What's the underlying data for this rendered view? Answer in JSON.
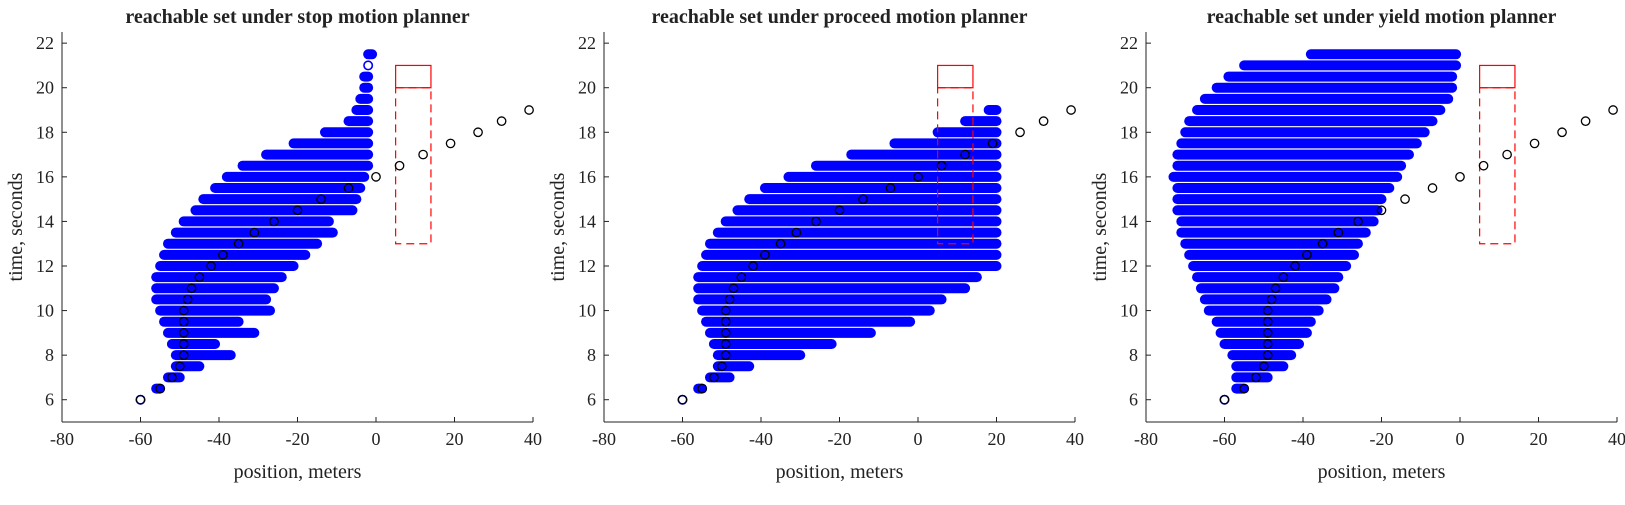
{
  "figure": {
    "colors": {
      "reachable": "#0000ff",
      "trajectory": "#000000",
      "conflict_zone": "#ff0000",
      "axis": "#222222"
    }
  },
  "chart_data": [
    {
      "type": "scatter",
      "title": "reachable set under stop motion planner",
      "xlabel": "position, meters",
      "ylabel": "time, seconds",
      "xlim": [
        -80,
        40
      ],
      "ylim": [
        5,
        22.5
      ],
      "xticks": [
        "-80",
        "-60",
        "-40",
        "-20",
        "0",
        "20",
        "40"
      ],
      "yticks": [
        "6",
        "8",
        "10",
        "12",
        "14",
        "16",
        "18",
        "20",
        "22"
      ],
      "grid": false,
      "reachable_set": [
        {
          "t": 6.0,
          "x": [
            -60,
            -60
          ]
        },
        {
          "t": 6.5,
          "x": [
            -56,
            -55
          ]
        },
        {
          "t": 7.0,
          "x": [
            -53,
            -50
          ]
        },
        {
          "t": 7.5,
          "x": [
            -51,
            -45
          ]
        },
        {
          "t": 8.0,
          "x": [
            -51,
            -37
          ]
        },
        {
          "t": 8.5,
          "x": [
            -52,
            -41
          ]
        },
        {
          "t": 9.0,
          "x": [
            -53,
            -31
          ]
        },
        {
          "t": 9.5,
          "x": [
            -54,
            -35
          ]
        },
        {
          "t": 10.0,
          "x": [
            -55,
            -27
          ]
        },
        {
          "t": 10.5,
          "x": [
            -56,
            -28
          ]
        },
        {
          "t": 11.0,
          "x": [
            -56,
            -26
          ]
        },
        {
          "t": 11.5,
          "x": [
            -56,
            -24
          ]
        },
        {
          "t": 12.0,
          "x": [
            -55,
            -21
          ]
        },
        {
          "t": 12.5,
          "x": [
            -54,
            -18
          ]
        },
        {
          "t": 13.0,
          "x": [
            -53,
            -15
          ]
        },
        {
          "t": 13.5,
          "x": [
            -51,
            -11
          ]
        },
        {
          "t": 14.0,
          "x": [
            -49,
            -12
          ]
        },
        {
          "t": 14.5,
          "x": [
            -46,
            -6
          ]
        },
        {
          "t": 15.0,
          "x": [
            -44,
            -5
          ]
        },
        {
          "t": 15.5,
          "x": [
            -41,
            -4
          ]
        },
        {
          "t": 16.0,
          "x": [
            -38,
            -3
          ]
        },
        {
          "t": 16.5,
          "x": [
            -34,
            -2
          ]
        },
        {
          "t": 17.0,
          "x": [
            -28,
            -2
          ]
        },
        {
          "t": 17.5,
          "x": [
            -21,
            -2
          ]
        },
        {
          "t": 18.0,
          "x": [
            -13,
            -2
          ]
        },
        {
          "t": 18.5,
          "x": [
            -7,
            -2
          ]
        },
        {
          "t": 19.0,
          "x": [
            -5,
            -2
          ]
        },
        {
          "t": 19.5,
          "x": [
            -4,
            -2
          ]
        },
        {
          "t": 20.0,
          "x": [
            -3,
            -2
          ]
        },
        {
          "t": 20.5,
          "x": [
            -3,
            -2
          ]
        },
        {
          "t": 21.0,
          "x": [
            -2,
            -2
          ]
        },
        {
          "t": 21.5,
          "x": [
            -2,
            -1
          ]
        }
      ],
      "trajectory": [
        [
          -60,
          6.0
        ],
        [
          -55,
          6.5
        ],
        [
          -52,
          7.0
        ],
        [
          -50,
          7.5
        ],
        [
          -49,
          8.0
        ],
        [
          -49,
          8.5
        ],
        [
          -49,
          9.0
        ],
        [
          -49,
          9.5
        ],
        [
          -49,
          10.0
        ],
        [
          -48,
          10.5
        ],
        [
          -47,
          11.0
        ],
        [
          -45,
          11.5
        ],
        [
          -42,
          12.0
        ],
        [
          -39,
          12.5
        ],
        [
          -35,
          13.0
        ],
        [
          -31,
          13.5
        ],
        [
          -26,
          14.0
        ],
        [
          -20,
          14.5
        ],
        [
          -14,
          15.0
        ],
        [
          -7,
          15.5
        ],
        [
          0,
          16.0
        ],
        [
          6,
          16.5
        ],
        [
          12,
          17.0
        ],
        [
          19,
          17.5
        ],
        [
          26,
          18.0
        ],
        [
          32,
          18.5
        ],
        [
          39,
          19.0
        ]
      ],
      "conflict_zone": {
        "x": [
          5,
          14
        ],
        "dashed_t": [
          13,
          20
        ],
        "solid_t": [
          20,
          21
        ]
      }
    },
    {
      "type": "scatter",
      "title": "reachable set under proceed motion planner",
      "xlabel": "position, meters",
      "ylabel": "time, seconds",
      "xlim": [
        -80,
        40
      ],
      "ylim": [
        5,
        22.5
      ],
      "xticks": [
        "-80",
        "-60",
        "-40",
        "-20",
        "0",
        "20",
        "40"
      ],
      "yticks": [
        "6",
        "8",
        "10",
        "12",
        "14",
        "16",
        "18",
        "20",
        "22"
      ],
      "grid": false,
      "reachable_set": [
        {
          "t": 6.0,
          "x": [
            -60,
            -60
          ]
        },
        {
          "t": 6.5,
          "x": [
            -56,
            -55
          ]
        },
        {
          "t": 7.0,
          "x": [
            -53,
            -48
          ]
        },
        {
          "t": 7.5,
          "x": [
            -51,
            -43
          ]
        },
        {
          "t": 8.0,
          "x": [
            -51,
            -30
          ]
        },
        {
          "t": 8.5,
          "x": [
            -52,
            -22
          ]
        },
        {
          "t": 9.0,
          "x": [
            -53,
            -12
          ]
        },
        {
          "t": 9.5,
          "x": [
            -54,
            -2
          ]
        },
        {
          "t": 10.0,
          "x": [
            -55,
            3
          ]
        },
        {
          "t": 10.5,
          "x": [
            -56,
            6
          ]
        },
        {
          "t": 11.0,
          "x": [
            -56,
            12
          ]
        },
        {
          "t": 11.5,
          "x": [
            -56,
            15
          ]
        },
        {
          "t": 12.0,
          "x": [
            -55,
            20
          ]
        },
        {
          "t": 12.5,
          "x": [
            -54,
            20
          ]
        },
        {
          "t": 13.0,
          "x": [
            -53,
            20
          ]
        },
        {
          "t": 13.5,
          "x": [
            -51,
            20
          ]
        },
        {
          "t": 14.0,
          "x": [
            -49,
            20
          ]
        },
        {
          "t": 14.5,
          "x": [
            -46,
            20
          ]
        },
        {
          "t": 15.0,
          "x": [
            -43,
            20
          ]
        },
        {
          "t": 15.5,
          "x": [
            -39,
            20
          ]
        },
        {
          "t": 16.0,
          "x": [
            -33,
            20
          ]
        },
        {
          "t": 16.5,
          "x": [
            -26,
            20
          ]
        },
        {
          "t": 17.0,
          "x": [
            -17,
            20
          ]
        },
        {
          "t": 17.5,
          "x": [
            -6,
            20
          ]
        },
        {
          "t": 18.0,
          "x": [
            5,
            20
          ]
        },
        {
          "t": 18.5,
          "x": [
            12,
            20
          ]
        },
        {
          "t": 19.0,
          "x": [
            18,
            20
          ]
        }
      ],
      "trajectory": [
        [
          -60,
          6.0
        ],
        [
          -55,
          6.5
        ],
        [
          -52,
          7.0
        ],
        [
          -50,
          7.5
        ],
        [
          -49,
          8.0
        ],
        [
          -49,
          8.5
        ],
        [
          -49,
          9.0
        ],
        [
          -49,
          9.5
        ],
        [
          -49,
          10.0
        ],
        [
          -48,
          10.5
        ],
        [
          -47,
          11.0
        ],
        [
          -45,
          11.5
        ],
        [
          -42,
          12.0
        ],
        [
          -39,
          12.5
        ],
        [
          -35,
          13.0
        ],
        [
          -31,
          13.5
        ],
        [
          -26,
          14.0
        ],
        [
          -20,
          14.5
        ],
        [
          -14,
          15.0
        ],
        [
          -7,
          15.5
        ],
        [
          0,
          16.0
        ],
        [
          6,
          16.5
        ],
        [
          12,
          17.0
        ],
        [
          19,
          17.5
        ],
        [
          26,
          18.0
        ],
        [
          32,
          18.5
        ],
        [
          39,
          19.0
        ]
      ],
      "conflict_zone": {
        "x": [
          5,
          14
        ],
        "dashed_t": [
          13,
          20
        ],
        "solid_t": [
          20,
          21
        ]
      }
    },
    {
      "type": "scatter",
      "title": "reachable set under yield motion planner",
      "xlabel": "position, meters",
      "ylabel": "time, seconds",
      "xlim": [
        -80,
        40
      ],
      "ylim": [
        5,
        22.5
      ],
      "xticks": [
        "-80",
        "-60",
        "-40",
        "-20",
        "0",
        "20",
        "40"
      ],
      "yticks": [
        "6",
        "8",
        "10",
        "12",
        "14",
        "16",
        "18",
        "20",
        "22"
      ],
      "grid": false,
      "reachable_set": [
        {
          "t": 6.0,
          "x": [
            -60,
            -60
          ]
        },
        {
          "t": 6.5,
          "x": [
            -57,
            -55
          ]
        },
        {
          "t": 7.0,
          "x": [
            -57,
            -49
          ]
        },
        {
          "t": 7.5,
          "x": [
            -57,
            -45
          ]
        },
        {
          "t": 8.0,
          "x": [
            -58,
            -43
          ]
        },
        {
          "t": 8.5,
          "x": [
            -60,
            -41
          ]
        },
        {
          "t": 9.0,
          "x": [
            -61,
            -39
          ]
        },
        {
          "t": 9.5,
          "x": [
            -62,
            -38
          ]
        },
        {
          "t": 10.0,
          "x": [
            -64,
            -36
          ]
        },
        {
          "t": 10.5,
          "x": [
            -65,
            -34
          ]
        },
        {
          "t": 11.0,
          "x": [
            -66,
            -32
          ]
        },
        {
          "t": 11.5,
          "x": [
            -67,
            -31
          ]
        },
        {
          "t": 12.0,
          "x": [
            -68,
            -29
          ]
        },
        {
          "t": 12.5,
          "x": [
            -69,
            -27
          ]
        },
        {
          "t": 13.0,
          "x": [
            -70,
            -26
          ]
        },
        {
          "t": 13.5,
          "x": [
            -71,
            -24
          ]
        },
        {
          "t": 14.0,
          "x": [
            -71,
            -22
          ]
        },
        {
          "t": 14.5,
          "x": [
            -72,
            -21
          ]
        },
        {
          "t": 15.0,
          "x": [
            -72,
            -20
          ]
        },
        {
          "t": 15.5,
          "x": [
            -72,
            -18
          ]
        },
        {
          "t": 16.0,
          "x": [
            -73,
            -16
          ]
        },
        {
          "t": 16.5,
          "x": [
            -72,
            -15
          ]
        },
        {
          "t": 17.0,
          "x": [
            -72,
            -13
          ]
        },
        {
          "t": 17.5,
          "x": [
            -71,
            -11
          ]
        },
        {
          "t": 18.0,
          "x": [
            -70,
            -9
          ]
        },
        {
          "t": 18.5,
          "x": [
            -69,
            -7
          ]
        },
        {
          "t": 19.0,
          "x": [
            -67,
            -5
          ]
        },
        {
          "t": 19.5,
          "x": [
            -65,
            -3
          ]
        },
        {
          "t": 20.0,
          "x": [
            -62,
            -2
          ]
        },
        {
          "t": 20.5,
          "x": [
            -59,
            -2
          ]
        },
        {
          "t": 21.0,
          "x": [
            -55,
            -1
          ]
        },
        {
          "t": 21.5,
          "x": [
            -38,
            -1
          ]
        }
      ],
      "trajectory": [
        [
          -60,
          6.0
        ],
        [
          -55,
          6.5
        ],
        [
          -52,
          7.0
        ],
        [
          -50,
          7.5
        ],
        [
          -49,
          8.0
        ],
        [
          -49,
          8.5
        ],
        [
          -49,
          9.0
        ],
        [
          -49,
          9.5
        ],
        [
          -49,
          10.0
        ],
        [
          -48,
          10.5
        ],
        [
          -47,
          11.0
        ],
        [
          -45,
          11.5
        ],
        [
          -42,
          12.0
        ],
        [
          -39,
          12.5
        ],
        [
          -35,
          13.0
        ],
        [
          -31,
          13.5
        ],
        [
          -26,
          14.0
        ],
        [
          -20,
          14.5
        ],
        [
          -14,
          15.0
        ],
        [
          -7,
          15.5
        ],
        [
          0,
          16.0
        ],
        [
          6,
          16.5
        ],
        [
          12,
          17.0
        ],
        [
          19,
          17.5
        ],
        [
          26,
          18.0
        ],
        [
          32,
          18.5
        ],
        [
          39,
          19.0
        ]
      ],
      "conflict_zone": {
        "x": [
          5,
          14
        ],
        "dashed_t": [
          13,
          20
        ],
        "solid_t": [
          20,
          21
        ]
      }
    }
  ]
}
